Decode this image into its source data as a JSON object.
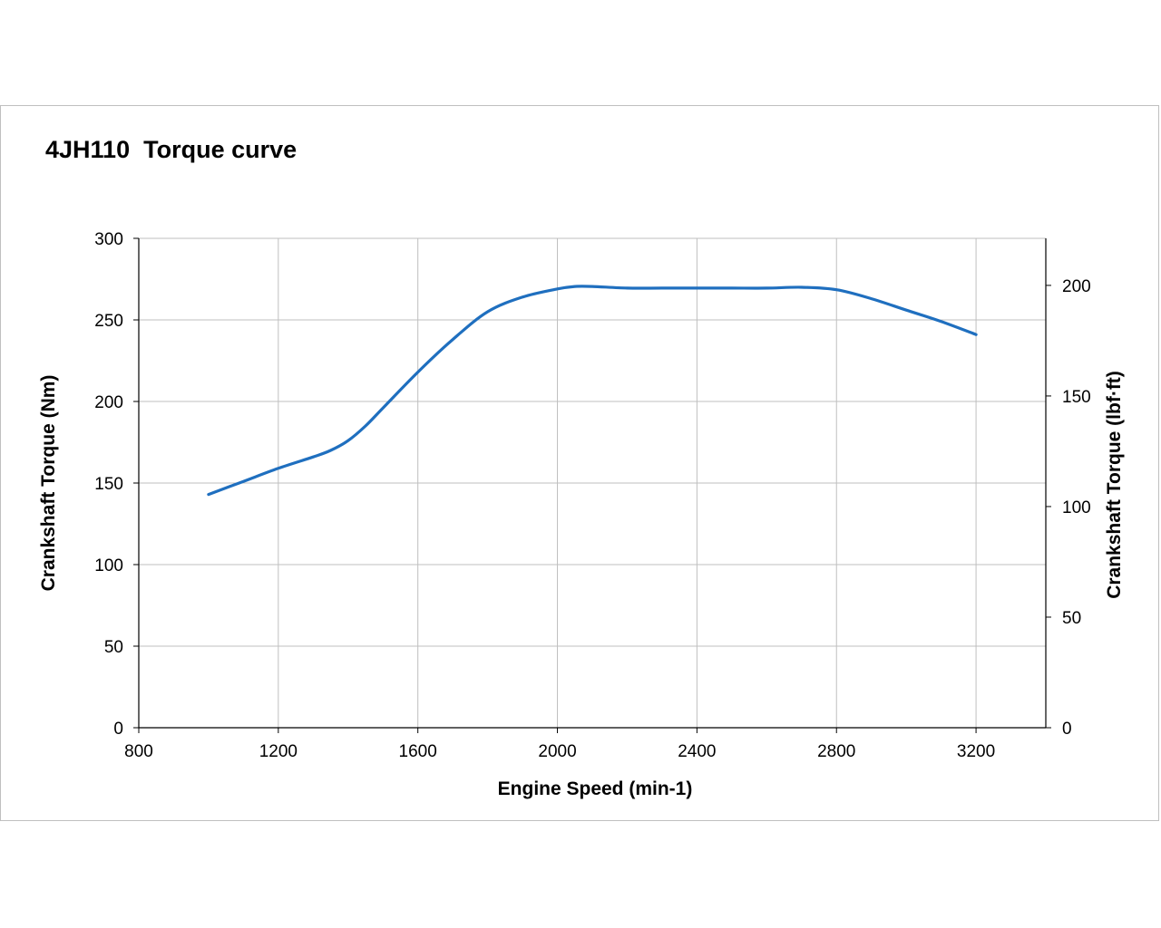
{
  "chart_data": {
    "type": "line",
    "title": "4JH110  Torque curve",
    "xlabel": "Engine Speed (min-1)",
    "ylabel": "Crankshaft Torque (Nm)",
    "y2label": "Crankshaft Torque (lbf·ft)",
    "xlim": [
      800,
      3400
    ],
    "ylim": [
      0,
      300
    ],
    "y2lim": [
      0,
      221.27
    ],
    "xticks": [
      "800",
      "1200",
      "1600",
      "2000",
      "2400",
      "2800",
      "3200"
    ],
    "yticks": [
      "0",
      "50",
      "100",
      "150",
      "200",
      "250",
      "300"
    ],
    "y2ticks": [
      "0",
      "50",
      "100",
      "150",
      "200"
    ],
    "grid": true,
    "line_color": "#1f6fbf",
    "series": [
      {
        "x": [
          1000,
          1100,
          1200,
          1300,
          1350,
          1400,
          1450,
          1500,
          1600,
          1700,
          1800,
          1900,
          2000,
          2050,
          2100,
          2200,
          2300,
          2400,
          2500,
          2600,
          2700,
          2800,
          2900,
          3000,
          3100,
          3200
        ],
        "values": [
          143,
          151,
          159,
          166,
          170,
          176,
          185,
          196,
          218,
          238,
          255,
          264,
          269,
          270.5,
          270.5,
          269.5,
          269.5,
          269.5,
          269.5,
          269.5,
          270,
          268.5,
          263,
          256,
          249,
          241
        ]
      }
    ]
  }
}
